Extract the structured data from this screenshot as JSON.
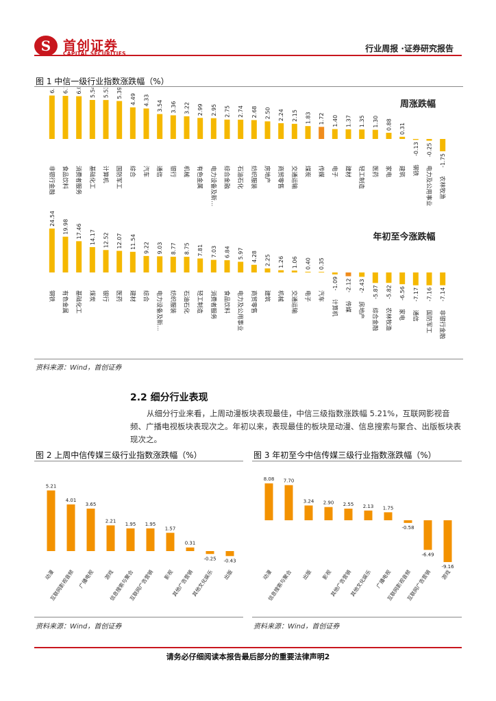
{
  "header": {
    "logo_mark": "S",
    "logo_cn": "首创证券",
    "logo_en": "CAPITAL SECURITIES",
    "right_text": "行业周报 ·证券研究报告"
  },
  "figure1": {
    "title": "图 1 中信一级行业指数涨跌幅（%）",
    "source": "资料来源：Wind，首创证券"
  },
  "section": {
    "title": "2.2 细分行业表现",
    "paragraph": "从细分行业来看，上周动漫板块表现最佳，中信三级指数涨跌幅 5.21%，互联网影视音频、广播电视板块表现次之。年初以来，表现最佳的板块是动漫、信息搜索与聚合、出版板块表现次之。"
  },
  "figure2": {
    "title": "图 2 上周中信传媒三级行业指数涨跌幅（%）",
    "source": "资料来源：Wind，首创证券"
  },
  "figure3": {
    "title": "图 3 年初至今中信传媒三级行业指数涨跌幅（%）",
    "source": "资料来源：Wind，首创证券"
  },
  "footer": {
    "text": "请务必仔细阅读本报告最后部分的重要法律声明2"
  },
  "colors": {
    "brand": "#c8161d",
    "bar_yellow": "#f5b800",
    "bar_highlight": "#f08c1c",
    "bar_orange": "#f39200"
  },
  "chart_data": [
    {
      "id": "weekly",
      "type": "bar",
      "title": "周涨跌幅",
      "categories": [
        "非银行金融",
        "食品饮料",
        "消费者服务",
        "基础化工",
        "计算机",
        "国防军工",
        "综合",
        "汽车",
        "通信",
        "银行",
        "机械",
        "有色金属",
        "电力设备及新…",
        "综合金融",
        "石油石化",
        "纺织服装",
        "房地产",
        "商贸零售",
        "交通运输",
        "煤炭",
        "传媒",
        "电子",
        "建材",
        "轻工制造",
        "医药",
        "家电",
        "建筑",
        "钢铁",
        "电力及公用事业",
        "农林牧渔"
      ],
      "values": [
        6.17,
        6.12,
        6.07,
        5.54,
        5.53,
        5.39,
        4.49,
        4.33,
        3.54,
        3.36,
        3.22,
        2.99,
        2.95,
        2.75,
        2.74,
        2.68,
        2.5,
        2.24,
        2.15,
        1.83,
        1.72,
        1.4,
        1.37,
        1.35,
        1.3,
        0.88,
        0.31,
        -0.13,
        -0.25,
        -1.75
      ],
      "value_labels": [
        "6.17",
        "6.12",
        "6.07",
        "5.54",
        "5.53",
        "5.39",
        "4.49",
        "4.33",
        "3.54",
        "3.36",
        "3.22",
        "2.99",
        "2.95",
        "2.75",
        "2.74",
        "2.68",
        "2.50",
        "2.24",
        "2.15",
        "1.83",
        "1.72",
        "1.40",
        "1.37",
        "1.35",
        "1.30",
        "0.88",
        "0.31",
        "-0.13",
        "-0.25",
        "-1.75"
      ],
      "highlight": "传媒",
      "ylim": [
        -2,
        7
      ]
    },
    {
      "id": "ytd",
      "type": "bar",
      "title": "年初至今涨跌幅",
      "categories": [
        "钢铁",
        "有色金属",
        "基础化工",
        "煤炭",
        "银行",
        "医药",
        "建材",
        "综合",
        "电力设备及新…",
        "纺织服装",
        "石油石化",
        "轻工制造",
        "消费者服务",
        "食品饮料",
        "电力及公用事业",
        "商贸零售",
        "建筑",
        "机械",
        "交通运输",
        "电子",
        "汽车",
        "计算机",
        "传媒",
        "房地产",
        "综合金融",
        "农林牧渔",
        "家电",
        "通信",
        "国防军工",
        "非银行金融"
      ],
      "values": [
        24.54,
        19.98,
        17.46,
        14.17,
        12.52,
        12.07,
        11.54,
        9.22,
        9.03,
        8.77,
        8.75,
        7.81,
        7.03,
        6.84,
        5.97,
        4.28,
        2.25,
        1.26,
        1.06,
        0.4,
        0.35,
        -1.09,
        -2.12,
        -2.43,
        -5.87,
        -5.82,
        -6.56,
        -7.17,
        -7.16,
        -7.14
      ],
      "value_labels": [
        "24.54",
        "19.98",
        "17.46",
        "14.17",
        "12.52",
        "12.07",
        "11.54",
        "9.22",
        "9.03",
        "8.77",
        "8.75",
        "7.81",
        "7.03",
        "6.84",
        "5.97",
        "4.28",
        "2.25",
        "1.26",
        "1.06",
        "0.40",
        "0.35",
        "-1.09",
        "-2.12",
        "-2.43",
        "-5.87",
        "-5.82",
        "-6.56",
        "-7.17",
        "-7.16",
        "-7.14"
      ],
      "highlight": "传媒",
      "ylim": [
        -9,
        26
      ]
    },
    {
      "id": "fig2",
      "type": "bar",
      "title": "",
      "categories": [
        "动漫",
        "互联网影视音频",
        "广播电视",
        "游戏",
        "信息搜索与聚合",
        "互联网广告营销",
        "影视",
        "其他广告营销",
        "其他文化娱乐",
        "出版"
      ],
      "values": [
        5.21,
        4.01,
        3.65,
        2.21,
        1.95,
        1.95,
        1.57,
        0.31,
        -0.25,
        -0.43
      ],
      "value_labels": [
        "5.21",
        "4.01",
        "3.65",
        "2.21",
        "1.95",
        "1.95",
        "1.57",
        "0.31",
        "-0.25",
        "-0.43"
      ],
      "ylim": [
        -1,
        6
      ]
    },
    {
      "id": "fig3",
      "type": "bar",
      "title": "",
      "categories": [
        "动漫",
        "信息搜索与聚合",
        "出版",
        "影视",
        "其他广告营销",
        "其他文化娱乐",
        "广播电视",
        "互联网影视音频",
        "互联网广告营销",
        "游戏"
      ],
      "values": [
        8.08,
        7.7,
        3.24,
        2.9,
        2.55,
        2.13,
        1.75,
        -0.58,
        -6.49,
        -9.16
      ],
      "value_labels": [
        "8.08",
        "7.70",
        "3.24",
        "2.90",
        "2.55",
        "2.13",
        "1.75",
        "-0.58",
        "-6.49",
        "-9.16"
      ],
      "ylim": [
        -10,
        9
      ]
    }
  ]
}
